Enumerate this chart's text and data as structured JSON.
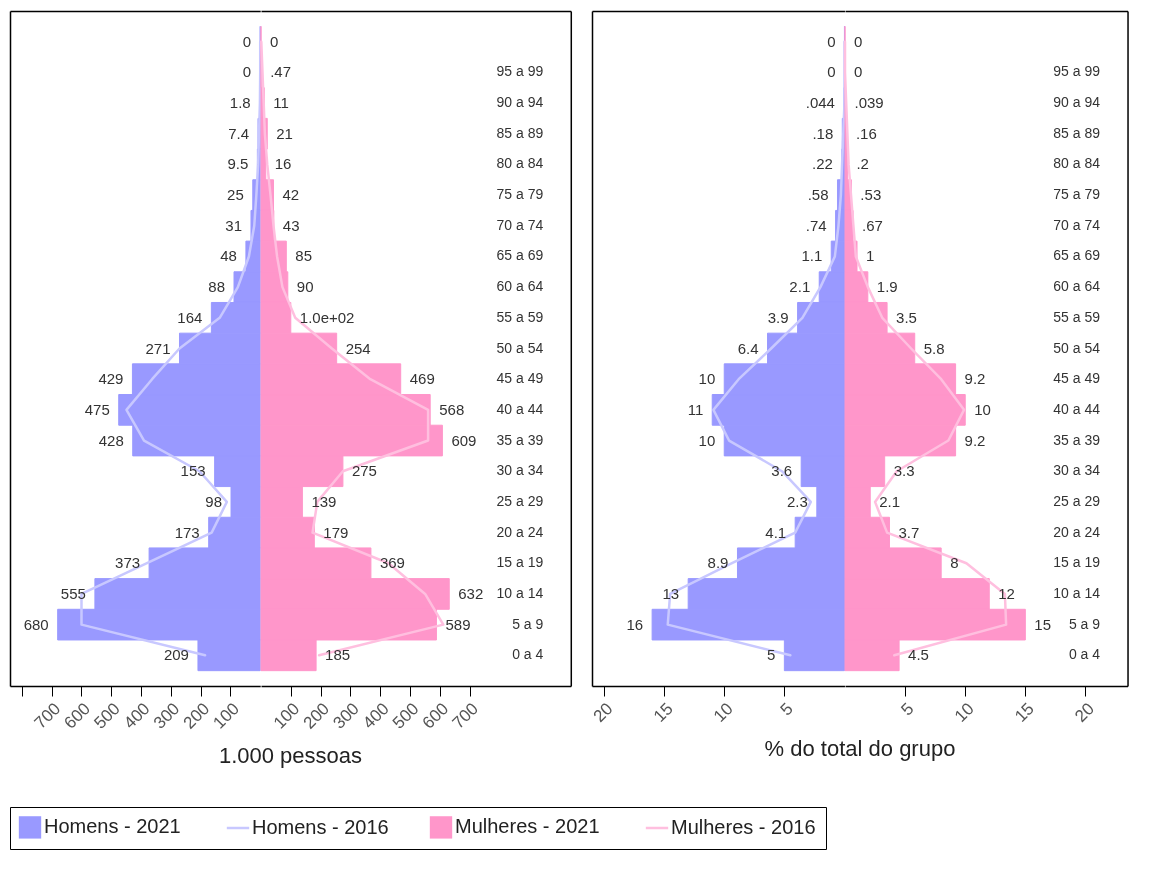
{
  "chart_data": [
    {
      "type": "bar",
      "orientation": "horizontal",
      "xlabel": "1.000 pessoas",
      "legend": "bottom",
      "tick_labels": "x",
      "categories": [
        null,
        "95 a 99",
        "90 a 94",
        "85 a 89",
        "80 a 84",
        "75 a 79",
        "70 a 74",
        "65 a 69",
        "60 a 64",
        "55 a 59",
        "50 a 54",
        "45 a 49",
        "40 a 44",
        "35 a 39",
        "30 a 34",
        "25 a 29",
        "20 a 24",
        "15 a 19",
        "10 a 14",
        "5 a 9",
        "0 a 4"
      ],
      "xlim": [
        840,
        0
      ],
      "xticks": [
        {
          "value": 800,
          "label": null
        },
        700,
        600,
        500,
        400,
        300,
        200,
        100
      ],
      "series": [
        {
          "name": "Homens - 2021",
          "color": "#9999ff",
          "values": [
            0,
            0,
            1.8,
            7.4,
            9.5,
            25,
            31,
            48,
            88,
            164,
            271,
            429,
            475,
            428,
            153,
            98,
            173,
            373,
            555,
            680,
            209
          ],
          "data_labels": true
        },
        {
          "name": "Homens - 2016",
          "type": "line",
          "color": "#c8c8ff",
          "values": [
            0,
            0,
            1,
            4,
            7,
            13,
            20,
            38,
            75,
            136,
            271,
            363,
            449,
            390,
            204,
            112,
            163,
            382,
            600,
            600,
            185
          ]
        }
      ]
    },
    {
      "type": "bar",
      "orientation": "horizontal",
      "legend": "bottom",
      "categories": [
        null,
        "95 a 99",
        "90 a 94",
        "85 a 89",
        "80 a 84",
        "75 a 79",
        "70 a 74",
        "65 a 69",
        "60 a 64",
        "55 a 59",
        "50 a 54",
        "45 a 49",
        "40 a 44",
        "35 a 39",
        "30 a 34",
        "25 a 29",
        "20 a 24",
        "15 a 19",
        "10 a 14",
        "5 a 9",
        "0 a 4"
      ],
      "xlim": [
        0,
        1040
      ],
      "xticks": [
        100,
        200,
        300,
        400,
        500,
        600,
        700
      ],
      "series": [
        {
          "name": "Mulheres - 2021",
          "color": "#ff96ca",
          "values": [
            0,
            0.47,
            11,
            21,
            16,
            42,
            43,
            85,
            90,
            100,
            254,
            469,
            568,
            609,
            275,
            139,
            179,
            369,
            632,
            589,
            185
          ],
          "value_labels": [
            "0",
            ".47",
            "11",
            "21",
            "16",
            "42",
            "43",
            "85",
            "90",
            "1.0e+02",
            "254",
            "469",
            "568",
            "609",
            "275",
            "139",
            "179",
            "369",
            "632",
            "589",
            "185"
          ]
        },
        {
          "name": "Mulheres - 2016",
          "type": "line",
          "color": "#ffbfdf",
          "values": [
            1,
            5,
            9,
            13,
            21,
            32,
            42,
            54,
            72,
            115,
            238,
            367,
            561,
            561,
            275,
            189,
            173,
            428,
            551,
            612,
            195
          ]
        }
      ]
    },
    {
      "type": "bar",
      "orientation": "horizontal",
      "xlabel": "% do total do grupo",
      "legend": "bottom",
      "tick_labels": "x",
      "categories": [
        null,
        "95 a 99",
        "90 a 94",
        "85 a 89",
        "80 a 84",
        "75 a 79",
        "70 a 74",
        "65 a 69",
        "60 a 64",
        "55 a 59",
        "50 a 54",
        "45 a 49",
        "40 a 44",
        "35 a 39",
        "30 a 34",
        "25 a 29",
        "20 a 24",
        "15 a 19",
        "10 a 14",
        "5 a 9",
        "0 a 4"
      ],
      "xlim": [
        21,
        0
      ],
      "xticks": [
        20,
        15,
        10,
        5
      ],
      "series": [
        {
          "name": "Homens - 2021",
          "color": "#9999ff",
          "values": [
            0,
            0,
            0.044,
            0.18,
            0.22,
            0.58,
            0.74,
            1.1,
            2.1,
            3.9,
            6.4,
            10,
            11,
            10,
            3.6,
            2.3,
            4.1,
            8.9,
            13,
            16,
            5
          ],
          "value_labels": [
            "0",
            "0",
            ".044",
            ".18",
            ".22",
            ".58",
            ".74",
            "1.1",
            "2.1",
            "3.9",
            "6.4",
            "10",
            "11",
            "10",
            "3.6",
            "2.3",
            "4.1",
            "8.9",
            "13",
            "16",
            "5"
          ]
        },
        {
          "name": "Homens - 2016",
          "type": "line",
          "color": "#c8c8ff",
          "values": [
            0,
            0,
            0,
            0.1,
            0.2,
            0.3,
            0.5,
            0.8,
            2.0,
            3.5,
            6.1,
            8.8,
            10.9,
            9.6,
            5.2,
            2.8,
            4.1,
            9.4,
            14.5,
            14.7,
            4.5
          ]
        }
      ]
    },
    {
      "type": "bar",
      "orientation": "horizontal",
      "legend": "bottom",
      "categories": [
        null,
        "95 a 99",
        "90 a 94",
        "85 a 89",
        "80 a 84",
        "75 a 79",
        "70 a 74",
        "65 a 69",
        "60 a 64",
        "55 a 59",
        "50 a 54",
        "45 a 49",
        "40 a 44",
        "35 a 39",
        "30 a 34",
        "25 a 29",
        "20 a 24",
        "15 a 19",
        "10 a 14",
        "5 a 9",
        "0 a 4"
      ],
      "xlim": [
        0,
        23.5
      ],
      "xticks": [
        5,
        10,
        15,
        20
      ],
      "series": [
        {
          "name": "Mulheres - 2021",
          "color": "#ff96ca",
          "values": [
            0,
            0,
            0.039,
            0.16,
            0.2,
            0.53,
            0.67,
            1,
            1.9,
            3.5,
            5.8,
            9.2,
            10,
            9.2,
            3.3,
            2.1,
            3.7,
            8,
            12,
            15,
            4.5
          ],
          "value_labels": [
            "0",
            "0",
            ".039",
            ".16",
            ".2",
            ".53",
            ".67",
            "1",
            "1.9",
            "3.5",
            "5.8",
            "9.2",
            "10",
            "9.2",
            "3.3",
            "2.1",
            "3.7",
            "8",
            "12",
            "15",
            "4.5"
          ]
        },
        {
          "name": "Mulheres - 2016",
          "type": "line",
          "color": "#ffbfdf",
          "values": [
            0,
            0,
            0.1,
            0.2,
            0.3,
            0.5,
            0.7,
            0.9,
            1.9,
            3.1,
            5.5,
            8.0,
            9.9,
            8.6,
            4.3,
            2.5,
            3.5,
            10.1,
            13.3,
            13.4,
            4.1
          ]
        }
      ]
    }
  ]
}
